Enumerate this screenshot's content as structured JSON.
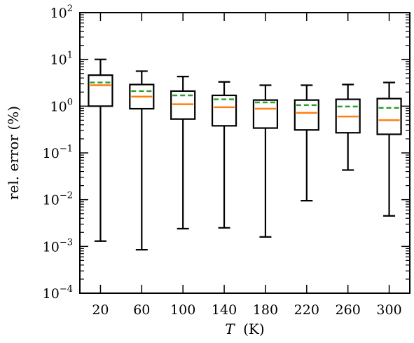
{
  "chart_data": {
    "type": "box",
    "xlabel_var": "T",
    "xlabel_unit": "(K)",
    "ylabel": "rel. error (%)",
    "y_scale": "log",
    "ylim": [
      0.0001,
      100
    ],
    "xlim": [
      0,
      320
    ],
    "x_ticks": [
      20,
      60,
      100,
      140,
      180,
      220,
      260,
      300
    ],
    "y_ticks": [
      {
        "value": 0.0001,
        "base": "10",
        "exp": "−4"
      },
      {
        "value": 0.001,
        "base": "10",
        "exp": "−3"
      },
      {
        "value": 0.01,
        "base": "10",
        "exp": "−2"
      },
      {
        "value": 0.1,
        "base": "10",
        "exp": "−1"
      },
      {
        "value": 1,
        "base": "10",
        "exp": "0"
      },
      {
        "value": 10,
        "base": "10",
        "exp": "1"
      },
      {
        "value": 100,
        "base": "10",
        "exp": "2"
      }
    ],
    "boxes": [
      {
        "x": 20,
        "whisker_low": 0.0013,
        "q1": 1.0,
        "median": 2.8,
        "mean": 3.2,
        "q3": 4.6,
        "whisker_high": 10.0
      },
      {
        "x": 60,
        "whisker_low": 0.00085,
        "q1": 0.88,
        "median": 1.6,
        "mean": 2.1,
        "q3": 2.9,
        "whisker_high": 5.6
      },
      {
        "x": 100,
        "whisker_low": 0.0024,
        "q1": 0.53,
        "median": 1.1,
        "mean": 1.7,
        "q3": 2.1,
        "whisker_high": 4.3
      },
      {
        "x": 140,
        "whisker_low": 0.0025,
        "q1": 0.38,
        "median": 0.95,
        "mean": 1.4,
        "q3": 1.7,
        "whisker_high": 3.3
      },
      {
        "x": 180,
        "whisker_low": 0.0016,
        "q1": 0.34,
        "median": 0.88,
        "mean": 1.2,
        "q3": 1.35,
        "whisker_high": 2.8
      },
      {
        "x": 220,
        "whisker_low": 0.0095,
        "q1": 0.31,
        "median": 0.72,
        "mean": 1.05,
        "q3": 1.35,
        "whisker_high": 2.8
      },
      {
        "x": 260,
        "whisker_low": 0.043,
        "q1": 0.27,
        "median": 0.6,
        "mean": 0.98,
        "q3": 1.4,
        "whisker_high": 2.9
      },
      {
        "x": 300,
        "whisker_low": 0.0045,
        "q1": 0.25,
        "median": 0.5,
        "mean": 0.92,
        "q3": 1.45,
        "whisker_high": 3.2
      }
    ],
    "colors": {
      "box": "#000000",
      "median": "#ff7f0e",
      "mean": "#2ca02c"
    },
    "grid": false
  }
}
